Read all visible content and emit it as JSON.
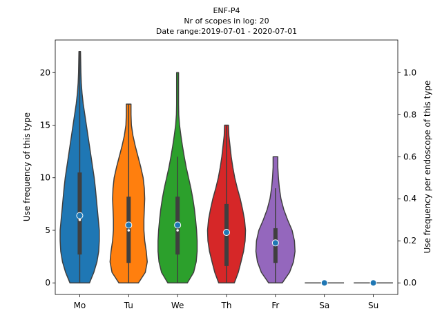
{
  "chart_data": {
    "type": "violin",
    "title_lines": [
      "ENF-P4",
      "Nr of scopes in log: 20",
      "Date range:2019-07-01 - 2020-07-01"
    ],
    "ylabel_left": "Use frequency of this type",
    "ylabel_right": "Use frequency per endoscope of this type",
    "categories": [
      "Mo",
      "Tu",
      "We",
      "Th",
      "Fr",
      "Sa",
      "Su"
    ],
    "colors": [
      "#1f77b4",
      "#ff7f0e",
      "#2ca02c",
      "#d62728",
      "#9467bd",
      "#8c564b",
      "#e377c2"
    ],
    "marker_color": "#1f77b4",
    "ylim_left": [
      -1.1,
      23.1
    ],
    "ylim_right": [
      -0.055,
      1.155
    ],
    "yticks_left": [
      0,
      5,
      10,
      15,
      20
    ],
    "yticks_right": [
      "0.0",
      "0.2",
      "0.4",
      "0.6",
      "0.8",
      "1.0"
    ],
    "series": [
      {
        "category": "Mo",
        "min": 0,
        "max": 22,
        "q1": 2.7,
        "median": 6.0,
        "q3": 10.5,
        "mean": 6.4,
        "whisker": [
          0,
          22
        ],
        "profile": [
          [
            0,
            0.5
          ],
          [
            1,
            0.72
          ],
          [
            2,
            0.88
          ],
          [
            3,
            0.97
          ],
          [
            4,
            1.0
          ],
          [
            5,
            1.0
          ],
          [
            6,
            0.95
          ],
          [
            7,
            0.9
          ],
          [
            8,
            0.85
          ],
          [
            9,
            0.8
          ],
          [
            10,
            0.74
          ],
          [
            11,
            0.66
          ],
          [
            12,
            0.58
          ],
          [
            13,
            0.5
          ],
          [
            14,
            0.42
          ],
          [
            15,
            0.34
          ],
          [
            16,
            0.26
          ],
          [
            17,
            0.18
          ],
          [
            18,
            0.12
          ],
          [
            19,
            0.08
          ],
          [
            20,
            0.06
          ],
          [
            21,
            0.05
          ],
          [
            22,
            0.04
          ]
        ]
      },
      {
        "category": "Tu",
        "min": 0,
        "max": 17,
        "q1": 1.9,
        "median": 5.0,
        "q3": 8.2,
        "mean": 5.5,
        "whisker": [
          0,
          17
        ],
        "profile": [
          [
            0,
            0.5
          ],
          [
            1,
            0.85
          ],
          [
            2,
            0.95
          ],
          [
            3,
            0.9
          ],
          [
            4,
            0.82
          ],
          [
            5,
            0.78
          ],
          [
            6,
            0.78
          ],
          [
            7,
            0.8
          ],
          [
            8,
            0.82
          ],
          [
            9,
            0.8
          ],
          [
            10,
            0.74
          ],
          [
            11,
            0.62
          ],
          [
            12,
            0.48
          ],
          [
            13,
            0.34
          ],
          [
            14,
            0.22
          ],
          [
            15,
            0.14
          ],
          [
            16,
            0.12
          ],
          [
            17,
            0.12
          ]
        ]
      },
      {
        "category": "We",
        "min": 0,
        "max": 20,
        "q1": 2.7,
        "median": 5.0,
        "q3": 8.2,
        "mean": 5.5,
        "whisker": [
          0,
          12
        ],
        "profile": [
          [
            0,
            0.5
          ],
          [
            1,
            0.82
          ],
          [
            2,
            0.95
          ],
          [
            3,
            1.0
          ],
          [
            4,
            1.0
          ],
          [
            5,
            0.97
          ],
          [
            6,
            0.92
          ],
          [
            7,
            0.86
          ],
          [
            8,
            0.78
          ],
          [
            9,
            0.68
          ],
          [
            10,
            0.56
          ],
          [
            11,
            0.44
          ],
          [
            12,
            0.34
          ],
          [
            13,
            0.25
          ],
          [
            14,
            0.17
          ],
          [
            15,
            0.1
          ],
          [
            16,
            0.06
          ],
          [
            17,
            0.05
          ],
          [
            18,
            0.05
          ],
          [
            19,
            0.05
          ],
          [
            20,
            0.05
          ]
        ]
      },
      {
        "category": "Th",
        "min": 0,
        "max": 15,
        "q1": 1.6,
        "median": 4.7,
        "q3": 7.5,
        "mean": 4.8,
        "whisker": [
          0,
          15
        ],
        "profile": [
          [
            0,
            0.4
          ],
          [
            1,
            0.6
          ],
          [
            2,
            0.74
          ],
          [
            3,
            0.87
          ],
          [
            4,
            0.95
          ],
          [
            5,
            0.97
          ],
          [
            6,
            0.92
          ],
          [
            7,
            0.82
          ],
          [
            8,
            0.7
          ],
          [
            9,
            0.55
          ],
          [
            10,
            0.42
          ],
          [
            11,
            0.32
          ],
          [
            12,
            0.24
          ],
          [
            13,
            0.18
          ],
          [
            14,
            0.12
          ],
          [
            15,
            0.1
          ]
        ]
      },
      {
        "category": "Fr",
        "min": 0,
        "max": 12,
        "q1": 1.9,
        "median": 3.7,
        "q3": 5.2,
        "mean": 3.8,
        "whisker": [
          0,
          9
        ],
        "profile": [
          [
            0,
            0.35
          ],
          [
            1,
            0.72
          ],
          [
            2,
            0.92
          ],
          [
            3,
            1.0
          ],
          [
            4,
            0.97
          ],
          [
            5,
            0.85
          ],
          [
            6,
            0.62
          ],
          [
            7,
            0.42
          ],
          [
            8,
            0.28
          ],
          [
            9,
            0.2
          ],
          [
            10,
            0.15
          ],
          [
            11,
            0.12
          ],
          [
            12,
            0.12
          ]
        ]
      },
      {
        "category": "Sa",
        "min": 0,
        "max": 0,
        "mean": 0,
        "flat": true
      },
      {
        "category": "Su",
        "min": 0,
        "max": 0,
        "mean": 0,
        "flat": true
      }
    ]
  }
}
